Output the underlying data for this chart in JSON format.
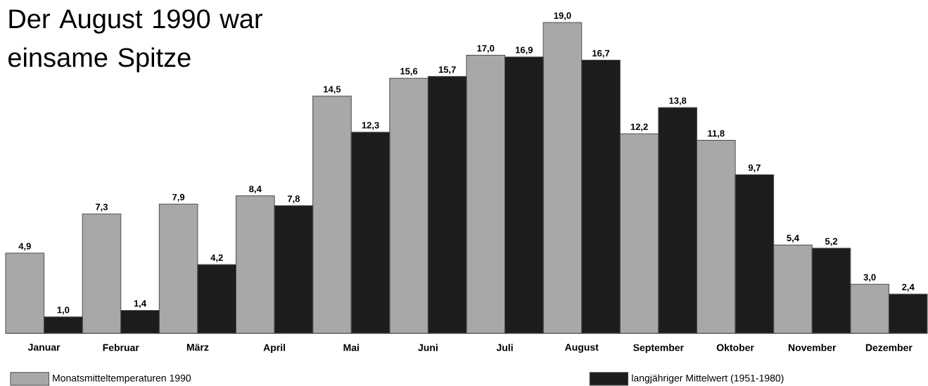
{
  "chart_data": {
    "type": "bar",
    "title": "Der August 1990 war einsame Spitze",
    "categories": [
      "Januar",
      "Februar",
      "März",
      "April",
      "Mai",
      "Juni",
      "Juli",
      "August",
      "September",
      "Oktober",
      "November",
      "Dezember"
    ],
    "series": [
      {
        "name": "Monatsmitteltemperaturen 1990",
        "color": "#a8a8a8",
        "values": [
          4.9,
          7.3,
          7.9,
          8.4,
          14.5,
          15.6,
          17.0,
          19.0,
          12.2,
          11.8,
          5.4,
          3.0
        ],
        "value_labels": [
          "4,9",
          "7,3",
          "7,9",
          "8,4",
          "14,5",
          "15,6",
          "17,0",
          "19,0",
          "12,2",
          "11,8",
          "5,4",
          "3,0"
        ]
      },
      {
        "name": "langjähriger Mittelwert (1951-1980)",
        "color": "#1c1c1c",
        "values": [
          1.0,
          1.4,
          4.2,
          7.8,
          12.3,
          15.7,
          16.9,
          16.7,
          13.8,
          9.7,
          5.2,
          2.4
        ],
        "value_labels": [
          "1,0",
          "1,4",
          "4,2",
          "7,8",
          "12,3",
          "15,7",
          "16,9",
          "16,7",
          "13,8",
          "9,7",
          "5,2",
          "2,4"
        ]
      }
    ],
    "legend": "bottom",
    "tick_labels": "x"
  }
}
